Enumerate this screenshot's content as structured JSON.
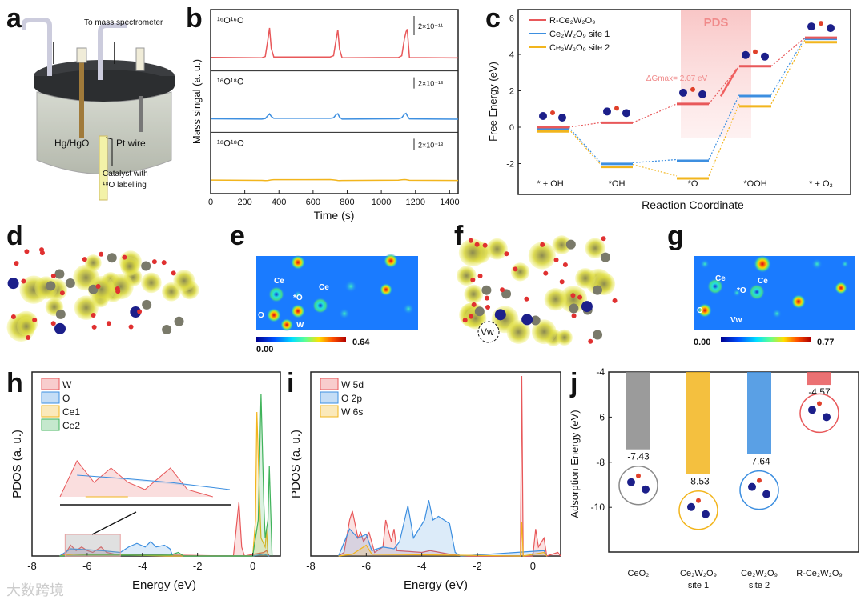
{
  "panel_labels": {
    "a": "a",
    "b": "b",
    "c": "c",
    "d": "d",
    "e": "e",
    "f": "f",
    "g": "g",
    "h": "h",
    "i": "i",
    "j": "j"
  },
  "panel_a": {
    "to_ms": "To mass spectrometer",
    "ref": "Hg/HgO",
    "counter": "Pt wire",
    "catalyst_line1": "Catalyst with",
    "catalyst_line2": "¹⁸O labelling"
  },
  "panel_e": {
    "labels": [
      "Ce",
      "*O",
      "Ce",
      "O",
      "W"
    ],
    "cbar_min": "0.00",
    "cbar_max": "0.64"
  },
  "panel_f": {
    "vacancy": "Vw"
  },
  "panel_g": {
    "labels": [
      "Ce",
      "*O",
      "Ce",
      "O",
      "Vw"
    ],
    "cbar_min": "0.00",
    "cbar_max": "0.77"
  },
  "watermark": "大数跨境",
  "colors": {
    "red": "#e8585a",
    "blue": "#3d8fe0",
    "yellow": "#f2b51d",
    "green": "#3fb35a",
    "gray": "#8a8a8a",
    "navy": "#1c1f8a"
  },
  "chart_data": [
    {
      "id": "b",
      "type": "line",
      "xlabel": "Time (s)",
      "ylabel": "Mass singal (a. u.)",
      "xlim": [
        0,
        1450
      ],
      "xticks": [
        0,
        200,
        400,
        600,
        800,
        1000,
        1200,
        1400
      ],
      "x": [
        0,
        300,
        320,
        335,
        345,
        355,
        370,
        700,
        720,
        735,
        745,
        755,
        770,
        1100,
        1120,
        1135,
        1145,
        1152,
        1165,
        1450
      ],
      "series": [
        {
          "name": "¹⁶O¹⁶O",
          "scale_bar": "2×10⁻¹¹",
          "color": "#e8585a",
          "values": [
            0,
            0,
            0.05,
            0.6,
            1,
            0.3,
            0,
            0,
            0.05,
            0.6,
            0.95,
            0.3,
            0,
            0,
            0.05,
            0.6,
            0.85,
            0.95,
            0,
            0
          ]
        },
        {
          "name": "¹⁶O¹⁸O",
          "scale_bar": "2×10⁻¹³",
          "color": "#3d8fe0",
          "values": [
            0,
            0,
            0.05,
            0.25,
            0.35,
            0.15,
            0,
            0,
            0.05,
            0.3,
            0.38,
            0.15,
            0,
            0,
            0.05,
            0.28,
            0.35,
            0.2,
            0,
            0
          ]
        },
        {
          "name": "¹⁸O¹⁸O",
          "scale_bar": "2×10⁻¹³",
          "color": "#f2b51d",
          "values": [
            0,
            0,
            0,
            0,
            0,
            0,
            0,
            0,
            0,
            0,
            0,
            0,
            0,
            0,
            0,
            0,
            0,
            0,
            0,
            0
          ]
        }
      ]
    },
    {
      "id": "c",
      "type": "line",
      "xlabel": "Reaction Coordinate",
      "ylabel": "Free Energy (eV)",
      "ylim": [
        -3.3,
        6.3
      ],
      "yticks": [
        -2,
        0,
        2,
        4,
        6
      ],
      "categories": [
        "* + OH⁻",
        "*OH",
        "*O",
        "*OOH",
        "* + O₂"
      ],
      "series": [
        {
          "name": "R-Ce₂W₂O₉",
          "color": "#e8585a",
          "values": [
            0,
            0.25,
            1.28,
            3.35,
            4.92
          ]
        },
        {
          "name": "Ce₂W₂O₉ site 1",
          "color": "#3d8fe0",
          "values": [
            0,
            -1.95,
            -1.78,
            1.78,
            4.92
          ]
        },
        {
          "name": "Ce₂W₂O₉ site 2",
          "color": "#f2b51d",
          "values": [
            -0.1,
            -2.05,
            -2.68,
            1.28,
            4.8
          ]
        }
      ],
      "highlight_label": "PDS",
      "annotation": "ΔGmax= 2.07 eV",
      "legend": "top-left"
    },
    {
      "id": "h",
      "type": "area",
      "xlabel": "Energy (eV)",
      "ylabel": "PDOS (a. u.)",
      "xlim": [
        -8,
        1
      ],
      "xticks": [
        -8,
        -6,
        -4,
        -2,
        0
      ],
      "legend": "top-left",
      "series": [
        {
          "name": "W",
          "color": "#e8585a",
          "points": [
            [
              -7,
              0
            ],
            [
              -6.8,
              0.01
            ],
            [
              -6.6,
              0.06
            ],
            [
              -6.4,
              0.03
            ],
            [
              -6.2,
              0.05
            ],
            [
              -6,
              0.03
            ],
            [
              -5.8,
              0.02
            ],
            [
              -5.5,
              0.05
            ],
            [
              -5.3,
              0.02
            ],
            [
              -5,
              0.01
            ],
            [
              -4.5,
              0.01
            ],
            [
              -3,
              0.005
            ],
            [
              -0.7,
              0
            ],
            [
              -0.5,
              0.3
            ],
            [
              -0.4,
              0.05
            ],
            [
              -0.3,
              0
            ],
            [
              0.4,
              0.02
            ],
            [
              0.5,
              0.03
            ],
            [
              0.6,
              0
            ]
          ]
        },
        {
          "name": "O",
          "color": "#3d8fe0",
          "points": [
            [
              -7,
              0
            ],
            [
              -6.6,
              0.04
            ],
            [
              -6,
              0.035
            ],
            [
              -5.5,
              0.03
            ],
            [
              -4.8,
              0.02
            ],
            [
              -4.5,
              0.05
            ],
            [
              -4.2,
              0.07
            ],
            [
              -3.9,
              0.05
            ],
            [
              -3.7,
              0.08
            ],
            [
              -3.5,
              0.05
            ],
            [
              -3.2,
              0.06
            ],
            [
              -3,
              0.04
            ],
            [
              -2.9,
              0
            ],
            [
              0,
              0
            ],
            [
              0.4,
              0.01
            ],
            [
              0.6,
              0
            ]
          ]
        },
        {
          "name": "Ce1",
          "color": "#f2b51d",
          "points": [
            [
              -7,
              0
            ],
            [
              -6.5,
              0.01
            ],
            [
              -6,
              0.01
            ],
            [
              -3,
              0
            ],
            [
              0,
              0
            ],
            [
              0.1,
              0.2
            ],
            [
              0.15,
              0.8
            ],
            [
              0.25,
              0.3
            ],
            [
              0.3,
              0.1
            ],
            [
              0.45,
              0.05
            ],
            [
              0.5,
              0.15
            ],
            [
              0.55,
              0
            ]
          ]
        },
        {
          "name": "Ce2",
          "color": "#3fb35a",
          "points": [
            [
              -7,
              0
            ],
            [
              -6,
              0.005
            ],
            [
              -3,
              0.005
            ],
            [
              -2.7,
              0.02
            ],
            [
              -2.5,
              0
            ],
            [
              0,
              0
            ],
            [
              0.2,
              0.2
            ],
            [
              0.3,
              0.9
            ],
            [
              0.4,
              0.3
            ],
            [
              0.45,
              0.1
            ],
            [
              0.55,
              0.2
            ],
            [
              0.6,
              0.5
            ],
            [
              0.7,
              0
            ]
          ]
        }
      ],
      "inset_range": [
        -6.8,
        -4.8
      ]
    },
    {
      "id": "i",
      "type": "area",
      "xlabel": "Energy (eV)",
      "ylabel": "PDOS (a. u.)",
      "xlim": [
        -8,
        1
      ],
      "xticks": [
        -8,
        -6,
        -4,
        -2,
        0
      ],
      "legend": "top-left",
      "series": [
        {
          "name": "W 5d",
          "color": "#e8585a",
          "points": [
            [
              -7,
              0
            ],
            [
              -6.8,
              0.02
            ],
            [
              -6.6,
              0.2
            ],
            [
              -6.5,
              0.25
            ],
            [
              -6.3,
              0.1
            ],
            [
              -6.2,
              0.13
            ],
            [
              -6.1,
              0.08
            ],
            [
              -5.9,
              0.13
            ],
            [
              -5.7,
              0.02
            ],
            [
              -5.4,
              0.05
            ],
            [
              -5.3,
              0.2
            ],
            [
              -5.1,
              0.08
            ],
            [
              -5,
              0.15
            ],
            [
              -4.9,
              0.03
            ],
            [
              -4,
              0.02
            ],
            [
              -3.7,
              0.03
            ],
            [
              -3,
              0.01
            ],
            [
              -2.5,
              0
            ],
            [
              -0.45,
              0
            ],
            [
              -0.4,
              1
            ],
            [
              -0.35,
              0
            ],
            [
              0,
              0
            ],
            [
              0.1,
              0.15
            ],
            [
              0.2,
              0.05
            ],
            [
              0.4,
              0.1
            ],
            [
              0.5,
              0
            ],
            [
              0.9,
              0.02
            ],
            [
              1,
              0
            ]
          ]
        },
        {
          "name": "O 2p",
          "color": "#3d8fe0",
          "points": [
            [
              -7,
              0
            ],
            [
              -6.6,
              0.15
            ],
            [
              -6.3,
              0.1
            ],
            [
              -6,
              0.12
            ],
            [
              -5.8,
              0.03
            ],
            [
              -5.4,
              0.05
            ],
            [
              -5,
              0.04
            ],
            [
              -4.8,
              0.08
            ],
            [
              -4.5,
              0.28
            ],
            [
              -4.3,
              0.1
            ],
            [
              -4.1,
              0.15
            ],
            [
              -3.9,
              0.2
            ],
            [
              -3.75,
              0.31
            ],
            [
              -3.6,
              0.2
            ],
            [
              -3.4,
              0.22
            ],
            [
              -3.2,
              0.2
            ],
            [
              -3,
              0.18
            ],
            [
              -2.8,
              0.02
            ],
            [
              -2.6,
              0
            ],
            [
              0.4,
              0.03
            ],
            [
              0.5,
              0
            ]
          ]
        },
        {
          "name": "W 6s",
          "color": "#f2b51d",
          "points": [
            [
              -7,
              0
            ],
            [
              -6.5,
              0.01
            ],
            [
              -6,
              0.06
            ],
            [
              -5.8,
              0.01
            ],
            [
              -3,
              0.005
            ],
            [
              -0.45,
              0
            ],
            [
              -0.4,
              0.19
            ],
            [
              -0.35,
              0
            ],
            [
              0.4,
              0.02
            ],
            [
              0.5,
              0
            ]
          ]
        }
      ]
    },
    {
      "id": "j",
      "type": "bar",
      "ylabel": "Adsorption Energy (eV)",
      "ylim": [
        -11.9,
        -4
      ],
      "yticks": [
        -4,
        -6,
        -8,
        -10
      ],
      "categories": [
        "CeO₂",
        "Ce₂W₂O₉ site 1",
        "Ce₂W₂O₉ site 2",
        "R-Ce₂W₂O₉"
      ],
      "values": [
        -7.43,
        -8.53,
        -7.64,
        -4.57
      ],
      "labels": [
        "-7.43",
        "-8.53",
        "-7.64",
        "-4.57"
      ],
      "colors": [
        "#8a8a8a",
        "#f2b51d",
        "#3d8fe0",
        "#e8585a"
      ]
    }
  ]
}
